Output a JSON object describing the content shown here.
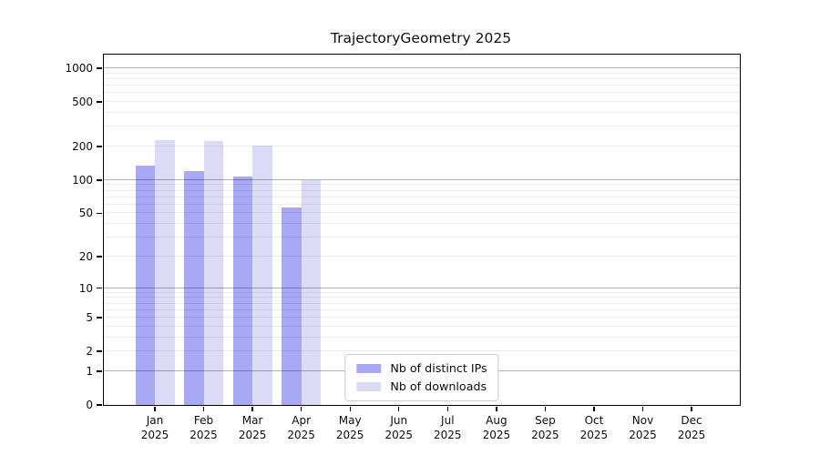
{
  "chart_data": {
    "type": "bar",
    "title": "TrajectoryGeometry 2025",
    "categories": [
      "Jan",
      "Feb",
      "Mar",
      "Apr",
      "May",
      "Jun",
      "Jul",
      "Aug",
      "Sep",
      "Oct",
      "Nov",
      "Dec"
    ],
    "x_sublabel": "2025",
    "series": [
      {
        "name": "Nb of distinct IPs",
        "color": "#a8a8f5",
        "values": [
          134,
          120,
          108,
          57,
          0,
          0,
          0,
          0,
          0,
          0,
          0,
          0
        ]
      },
      {
        "name": "Nb of downloads",
        "color": "#dbdbf8",
        "values": [
          228,
          224,
          203,
          100,
          0,
          0,
          0,
          0,
          0,
          0,
          0,
          0
        ]
      }
    ],
    "y_scale": "log10(1+x)",
    "y_ticks": [
      0,
      1,
      2,
      5,
      10,
      20,
      50,
      100,
      200,
      500,
      1000
    ],
    "major_grid_values": [
      1,
      10,
      100,
      1000
    ],
    "minor_grid_decades": [
      1,
      10,
      100
    ],
    "ylim": [
      0,
      1300
    ],
    "grid": "horizontal",
    "legend_position": "lower center",
    "colors": {
      "bar_distinct_ips": "#a8a8f5",
      "bar_downloads": "#dbdbf8",
      "major_grid": "#b0b0b0",
      "minor_grid": "#ebebeb",
      "spine": "#000000",
      "background": "#ffffff",
      "legend_border": "#cccccc"
    }
  },
  "legend": {
    "items": [
      {
        "label": "Nb of distinct IPs"
      },
      {
        "label": "Nb of downloads"
      }
    ]
  }
}
